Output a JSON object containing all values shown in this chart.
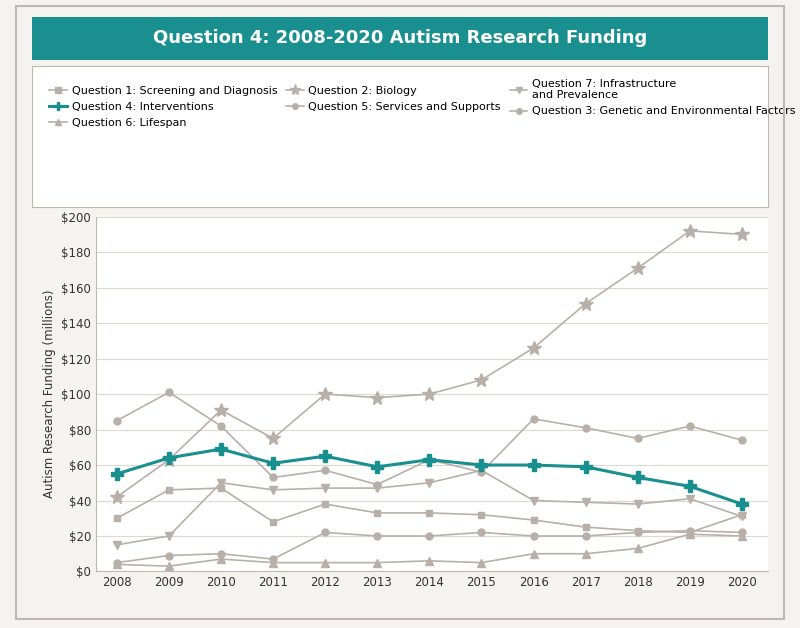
{
  "title": "Question 4: 2008-2020 Autism Research Funding",
  "title_bg": "#1a8f8f",
  "title_color": "#ffffff",
  "ylabel": "Autism Research Funding (millions)",
  "years": [
    2008,
    2009,
    2010,
    2011,
    2012,
    2013,
    2014,
    2015,
    2016,
    2017,
    2018,
    2019,
    2020
  ],
  "series": {
    "Q1_Screening": {
      "label": "Question 1: Screening and Diagnosis",
      "color": "#b8b0a8",
      "marker": "s",
      "linewidth": 1.2,
      "markersize": 5,
      "zorder": 2,
      "values": [
        30,
        46,
        47,
        28,
        38,
        33,
        33,
        32,
        29,
        25,
        23,
        22,
        32
      ]
    },
    "Q2_Biology": {
      "label": "Question 2: Biology",
      "color": "#b8b0a8",
      "marker": "*",
      "linewidth": 1.2,
      "markersize": 10,
      "zorder": 2,
      "values": [
        42,
        63,
        91,
        75,
        100,
        98,
        100,
        108,
        126,
        151,
        171,
        192,
        190
      ]
    },
    "Q3_Genetic": {
      "label": "Question 3: Genetic and Environmental Factors",
      "color": "#b8b0a8",
      "marker": "o",
      "linewidth": 1.2,
      "markersize": 5,
      "zorder": 2,
      "values": [
        5,
        9,
        10,
        7,
        22,
        20,
        20,
        22,
        20,
        20,
        22,
        23,
        22
      ]
    },
    "Q4_Interventions": {
      "label": "Question 4: Interventions",
      "color": "#1a8f8f",
      "marker": "P",
      "linewidth": 2.2,
      "markersize": 8,
      "zorder": 5,
      "values": [
        55,
        64,
        69,
        61,
        65,
        59,
        63,
        60,
        60,
        59,
        53,
        48,
        38
      ]
    },
    "Q5_Services": {
      "label": "Question 5: Services and Supports",
      "color": "#b8b0a8",
      "marker": "o",
      "linewidth": 1.2,
      "markersize": 5,
      "zorder": 2,
      "values": [
        85,
        101,
        82,
        53,
        57,
        49,
        63,
        56,
        86,
        81,
        75,
        82,
        74
      ]
    },
    "Q6_Lifespan": {
      "label": "Question 6: Lifespan",
      "color": "#b8b0a8",
      "marker": "^",
      "linewidth": 1.2,
      "markersize": 6,
      "zorder": 2,
      "values": [
        4,
        3,
        7,
        5,
        5,
        5,
        6,
        5,
        10,
        10,
        13,
        21,
        20
      ]
    },
    "Q7_Infrastructure": {
      "label": "Question 7: Infrastructure\nand Prevalence",
      "color": "#b8b0a8",
      "marker": "v",
      "linewidth": 1.2,
      "markersize": 6,
      "zorder": 2,
      "values": [
        15,
        20,
        50,
        46,
        47,
        47,
        50,
        57,
        40,
        39,
        38,
        41,
        31
      ]
    }
  },
  "ylim": [
    0,
    200
  ],
  "yticks": [
    0,
    20,
    40,
    60,
    80,
    100,
    120,
    140,
    160,
    180,
    200
  ],
  "ytick_labels": [
    "$0",
    "$20",
    "$40",
    "$60",
    "$80",
    "$100",
    "$120",
    "$140",
    "$160",
    "$180",
    "$200"
  ],
  "background_color": "#ffffff",
  "plot_bg": "#ffffff",
  "border_color": "#c0b8b0",
  "grid_color": "#ddd8d0",
  "outer_border": "#c0b8b0",
  "fig_bg": "#f5f3f0"
}
